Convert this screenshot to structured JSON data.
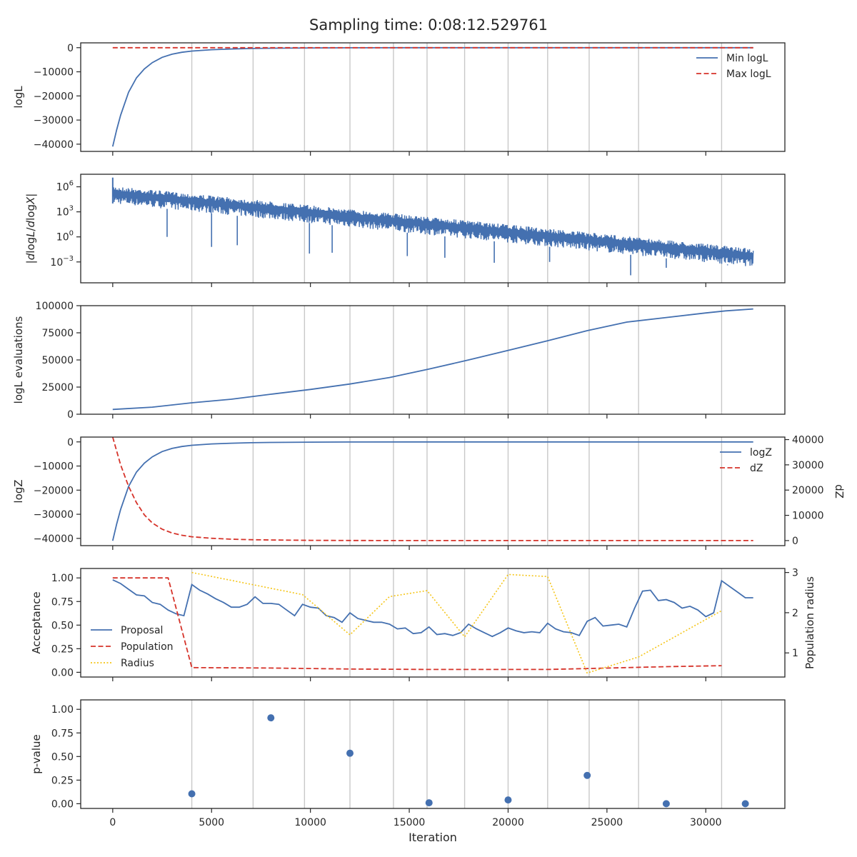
{
  "figure": {
    "suptitle": "Sampling time: 0:08:12.529761",
    "colors": {
      "blue": "#4470b0",
      "red": "#d6332a",
      "gold": "#f5c518",
      "vline": "#c8c8c8",
      "axis": "#262626"
    }
  },
  "chart_data": [
    {
      "id": "loglike",
      "type": "line",
      "ylabel": "logL",
      "xlim": [
        -1620,
        34000
      ],
      "ylim": [
        -43000,
        2000
      ],
      "yticks": [
        0,
        -10000,
        -20000,
        -30000,
        -40000
      ],
      "ytick_labels": [
        "0",
        "−10000",
        "−20000",
        "−30000",
        "−40000"
      ],
      "legend": [
        "Min logL",
        "Max logL"
      ],
      "legend_position": "upper-right",
      "series": [
        {
          "name": "Min logL",
          "style": "solid",
          "color": "#4470b0",
          "x": [
            0,
            200,
            400,
            800,
            1200,
            1600,
            2000,
            2500,
            3000,
            3500,
            4000,
            5000,
            6000,
            7000,
            8000,
            10000,
            12000,
            15000,
            20000,
            25000,
            30000,
            32400
          ],
          "y": [
            -41000,
            -34000,
            -28000,
            -18500,
            -12500,
            -8800,
            -6200,
            -4000,
            -2700,
            -1900,
            -1400,
            -850,
            -550,
            -350,
            -230,
            -110,
            -50,
            -20,
            -5,
            -2,
            -1,
            -1
          ]
        },
        {
          "name": "Max logL",
          "style": "dashed",
          "color": "#d6332a",
          "x": [
            0,
            32400
          ],
          "y": [
            -20,
            -1
          ]
        }
      ]
    },
    {
      "id": "gradient",
      "type": "line",
      "ylabel": "|d logL / d logX|",
      "ylabel_parts": [
        "|",
        "d",
        "log",
        "L",
        "/",
        "d",
        "log",
        "X",
        "|"
      ],
      "yscale": "log",
      "ylim_log10": [
        -5.5,
        7.5
      ],
      "yticks_log10": [
        6,
        3,
        0,
        -3
      ],
      "ytick_labels": [
        "10",
        "10",
        "10",
        "10"
      ],
      "ytick_exponents": [
        "6",
        "3",
        "0",
        "−3"
      ],
      "series": [
        {
          "name": "",
          "color": "#4470b0",
          "x": [
            0,
            32400
          ],
          "upper_log10": [
            6.1,
            -1.4
          ],
          "lower_log10": [
            4.0,
            -3.6
          ],
          "spikes_x": [
            2750,
            5000,
            6300,
            9950,
            11100,
            14900,
            16800,
            19300,
            22100,
            26200,
            28000,
            31100
          ],
          "spikes_log10": [
            0.0,
            -1.2,
            -1.0,
            -2.0,
            -1.9,
            -2.3,
            -2.5,
            -3.1,
            -3.0,
            -4.6,
            -3.7,
            -3.4
          ]
        }
      ]
    },
    {
      "id": "ncall",
      "type": "line",
      "ylabel": "logL evaluations",
      "ylim": [
        0,
        100000
      ],
      "yticks": [
        0,
        25000,
        50000,
        75000,
        100000
      ],
      "ytick_labels": [
        "0",
        "25000",
        "50000",
        "75000",
        "100000"
      ],
      "series": [
        {
          "name": "",
          "color": "#4470b0",
          "x": [
            0,
            2000,
            4000,
            6000,
            8000,
            10000,
            12000,
            14000,
            16000,
            18000,
            20000,
            22000,
            24000,
            26000,
            28000,
            30000,
            31000,
            32400
          ],
          "y": [
            4400,
            6500,
            10500,
            13800,
            18400,
            22800,
            27800,
            33800,
            41600,
            50000,
            58800,
            67700,
            77000,
            84900,
            89100,
            93300,
            95200,
            97000
          ]
        }
      ]
    },
    {
      "id": "logz",
      "type": "line",
      "ylabel": "logZ",
      "ylabel_right": "dZ",
      "ylim": [
        -43000,
        2000
      ],
      "yticks": [
        0,
        -10000,
        -20000,
        -30000,
        -40000
      ],
      "ytick_labels": [
        "0",
        "−10000",
        "−20000",
        "−30000",
        "−40000"
      ],
      "y2lim": [
        -2000,
        41000
      ],
      "y2ticks": [
        0,
        10000,
        20000,
        30000,
        40000
      ],
      "y2tick_labels": [
        "0",
        "10000",
        "20000",
        "30000",
        "40000"
      ],
      "legend": [
        "logZ",
        "dZ"
      ],
      "legend_position": "upper-right",
      "series": [
        {
          "name": "logZ",
          "style": "solid",
          "color": "#4470b0",
          "axis": "left",
          "x": [
            0,
            200,
            400,
            800,
            1200,
            1600,
            2000,
            2500,
            3000,
            3500,
            4000,
            5000,
            6000,
            7000,
            8000,
            10000,
            12000,
            15000,
            20000,
            25000,
            32400
          ],
          "y": [
            -41000,
            -34000,
            -28000,
            -18500,
            -12500,
            -8800,
            -6200,
            -4000,
            -2700,
            -1900,
            -1400,
            -850,
            -550,
            -350,
            -230,
            -110,
            -50,
            -20,
            -5,
            -2,
            -1
          ]
        },
        {
          "name": "dZ",
          "style": "dashed",
          "color": "#d6332a",
          "axis": "right",
          "x": [
            0,
            400,
            800,
            1200,
            1600,
            2000,
            2500,
            3000,
            3500,
            4000,
            5000,
            6000,
            7000,
            8000,
            10000,
            12000,
            15000,
            20000,
            32400
          ],
          "y": [
            41000,
            30000,
            21500,
            15000,
            10200,
            7000,
            4500,
            3000,
            2100,
            1500,
            900,
            550,
            350,
            230,
            100,
            40,
            10,
            2,
            0
          ]
        }
      ]
    },
    {
      "id": "acceptance",
      "type": "line",
      "ylabel": "Acceptance",
      "ylabel_right": "Population radius",
      "ylim": [
        -0.05,
        1.1
      ],
      "yticks": [
        0,
        0.25,
        0.5,
        0.75,
        1.0
      ],
      "ytick_labels": [
        "0.00",
        "0.25",
        "0.50",
        "0.75",
        "1.00"
      ],
      "y2lim": [
        0.4,
        3.1
      ],
      "y2ticks": [
        1,
        2,
        3
      ],
      "y2tick_labels": [
        "1",
        "2",
        "3"
      ],
      "legend": [
        "Proposal",
        "Population",
        "Radius"
      ],
      "legend_position": "lower-left",
      "series": [
        {
          "name": "Proposal",
          "style": "solid",
          "color": "#4470b0",
          "axis": "left",
          "x": [
            0,
            400,
            800,
            1200,
            1600,
            2000,
            2400,
            2800,
            3200,
            3600,
            4000,
            4400,
            4800,
            5200,
            5600,
            6000,
            6400,
            6800,
            7200,
            7600,
            8000,
            8400,
            8800,
            9200,
            9600,
            10000,
            10400,
            10800,
            11200,
            11600,
            12000,
            12400,
            12800,
            13200,
            13600,
            14000,
            14400,
            14800,
            15200,
            15600,
            16000,
            16400,
            16800,
            17200,
            17600,
            18000,
            18400,
            18800,
            19200,
            19600,
            20000,
            20400,
            20800,
            21200,
            21600,
            22000,
            22400,
            22800,
            23200,
            23600,
            24000,
            24400,
            24800,
            25200,
            25600,
            26000,
            26400,
            26800,
            27200,
            27600,
            28000,
            28400,
            28800,
            29200,
            29600,
            30000,
            30400,
            30800,
            31200,
            31600,
            32000,
            32400
          ],
          "y": [
            0.98,
            0.94,
            0.88,
            0.82,
            0.81,
            0.74,
            0.72,
            0.66,
            0.62,
            0.6,
            0.93,
            0.87,
            0.83,
            0.78,
            0.74,
            0.69,
            0.69,
            0.72,
            0.8,
            0.73,
            0.73,
            0.72,
            0.66,
            0.6,
            0.72,
            0.69,
            0.68,
            0.6,
            0.58,
            0.53,
            0.63,
            0.57,
            0.55,
            0.53,
            0.53,
            0.51,
            0.46,
            0.47,
            0.41,
            0.42,
            0.48,
            0.4,
            0.41,
            0.39,
            0.42,
            0.51,
            0.46,
            0.42,
            0.38,
            0.42,
            0.47,
            0.44,
            0.42,
            0.43,
            0.42,
            0.52,
            0.46,
            0.43,
            0.42,
            0.39,
            0.54,
            0.58,
            0.49,
            0.5,
            0.51,
            0.48,
            0.68,
            0.86,
            0.87,
            0.76,
            0.77,
            0.74,
            0.68,
            0.7,
            0.66,
            0.59,
            0.63,
            0.97,
            0.91,
            0.85,
            0.79,
            0.79
          ]
        },
        {
          "name": "Population",
          "style": "dashed",
          "color": "#d6332a",
          "axis": "left",
          "x": [
            0,
            2800,
            4000,
            8000,
            12000,
            16000,
            20000,
            22000,
            24000,
            28000,
            30800
          ],
          "y": [
            1.0,
            1.0,
            0.05,
            0.045,
            0.035,
            0.03,
            0.03,
            0.03,
            0.04,
            0.06,
            0.07
          ]
        },
        {
          "name": "Radius",
          "style": "dotted",
          "color": "#f5c518",
          "axis": "right",
          "x": [
            0,
            4000,
            9600,
            12000,
            14000,
            15900,
            17800,
            20000,
            22000,
            24000,
            26600,
            30800
          ],
          "y": [
            null,
            3.0,
            2.45,
            1.45,
            2.4,
            2.55,
            1.4,
            2.95,
            2.9,
            0.5,
            0.9,
            2.05
          ]
        }
      ]
    },
    {
      "id": "pvalue",
      "type": "scatter",
      "ylabel": "p-value",
      "xlabel": "Iteration",
      "ylim": [
        -0.05,
        1.1
      ],
      "yticks": [
        0,
        0.25,
        0.5,
        0.75,
        1.0
      ],
      "ytick_labels": [
        "0.00",
        "0.25",
        "0.50",
        "0.75",
        "1.00"
      ],
      "xticks": [
        0,
        5000,
        10000,
        15000,
        20000,
        25000,
        30000
      ],
      "xtick_labels": [
        "0",
        "5000",
        "10000",
        "15000",
        "20000",
        "25000",
        "30000"
      ],
      "series": [
        {
          "name": "",
          "color": "#4470b0",
          "x": [
            4000,
            8000,
            12000,
            16000,
            20000,
            24000,
            28000,
            32000
          ],
          "y": [
            0.105,
            0.91,
            0.535,
            0.01,
            0.04,
            0.3,
            0.0,
            0.0
          ]
        }
      ]
    }
  ],
  "vertical_markers_x": [
    4000,
    7100,
    9700,
    12000,
    14200,
    15900,
    17800,
    20000,
    22000,
    24100,
    26600,
    30800
  ]
}
